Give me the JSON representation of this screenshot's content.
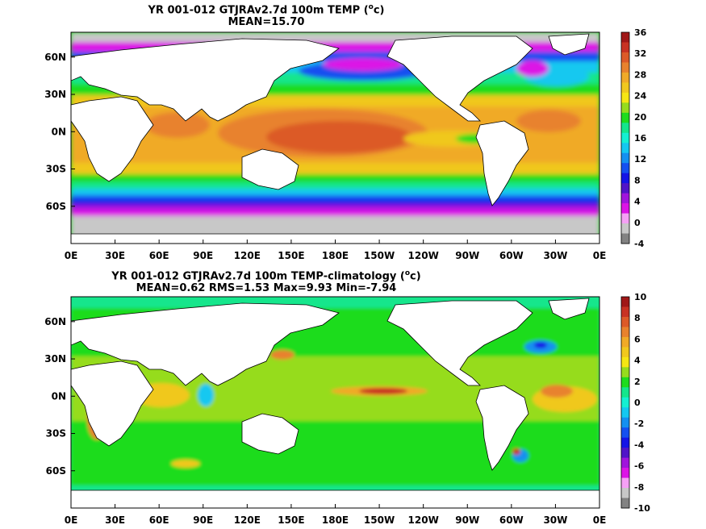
{
  "panel_top": {
    "title_line1": "YR 001-012 GTJRAv2.7d 100m TEMP (",
    "title_unit": "o",
    "title_unit_tail": "c)",
    "title_line2": "MEAN=15.70",
    "lat_labels": [
      "60N",
      "30N",
      "0N",
      "30S",
      "60S"
    ],
    "lon_labels": [
      "0E",
      "30E",
      "60E",
      "90E",
      "120E",
      "150E",
      "180E",
      "150W",
      "120W",
      "90W",
      "60W",
      "30W",
      "0E"
    ],
    "colorbar_labels": [
      "36",
      "32",
      "28",
      "24",
      "20",
      "16",
      "12",
      "8",
      "4",
      "0",
      "-4"
    ],
    "colorbar_colors": [
      "#a01818",
      "#c83223",
      "#dc5a28",
      "#e8822d",
      "#f0aa28",
      "#f0c81e",
      "#f5e614",
      "#96dc1e",
      "#1edc1e",
      "#14e68c",
      "#14f0d2",
      "#14c8f0",
      "#1490f0",
      "#1450f0",
      "#1414e6",
      "#5014c8",
      "#a014dc",
      "#dc14e6",
      "#f5a0f5",
      "#c8c8c8",
      "#828282"
    ]
  },
  "panel_bottom": {
    "title_line1": "YR 001-012 GTJRAv2.7d 100m TEMP-climatology (",
    "title_unit": "o",
    "title_unit_tail": "c)",
    "title_line2": "MEAN=0.62   RMS=1.53   Max=9.93   Min=-7.94",
    "lat_labels": [
      "60N",
      "30N",
      "0N",
      "30S",
      "60S"
    ],
    "lon_labels": [
      "0E",
      "30E",
      "60E",
      "90E",
      "120E",
      "150E",
      "180E",
      "150W",
      "120W",
      "90W",
      "60W",
      "30W",
      "0E"
    ],
    "colorbar_labels": [
      "10",
      "8",
      "6",
      "4",
      "2",
      "0",
      "-2",
      "-4",
      "-6",
      "-8",
      "-10"
    ],
    "colorbar_colors": [
      "#a01818",
      "#c83223",
      "#dc5a28",
      "#e8822d",
      "#f0aa28",
      "#f0c81e",
      "#f5e614",
      "#96dc1e",
      "#1edc1e",
      "#14e68c",
      "#14f0d2",
      "#14c8f0",
      "#1490f0",
      "#1450f0",
      "#1414e6",
      "#5014c8",
      "#a014dc",
      "#dc14e6",
      "#f5a0f5",
      "#c8c8c8",
      "#828282"
    ]
  }
}
